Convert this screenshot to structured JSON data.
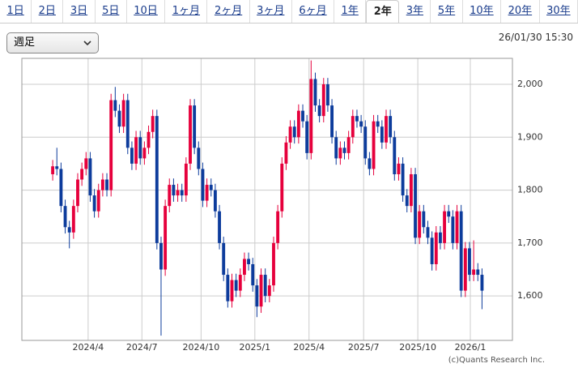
{
  "tabs": [
    "1日",
    "2日",
    "3日",
    "5日",
    "10日",
    "1ヶ月",
    "2ヶ月",
    "3ヶ月",
    "6ヶ月",
    "1年",
    "2年",
    "3年",
    "5年",
    "10年",
    "20年",
    "30年"
  ],
  "active_tab": "2年",
  "period_select": "週足",
  "timestamp": "26/01/30 15:30",
  "chart_data": {
    "type": "candlestick",
    "up_color": "#e6003c",
    "down_color": "#0d3c9c",
    "grid": true,
    "credit": "(c)Quants Research Inc.",
    "xlim": [
      -7.4,
      110.3
    ],
    "xticks": [
      {
        "value": 8.5,
        "label": "2024/4"
      },
      {
        "value": 21.4,
        "label": "2024/7"
      },
      {
        "value": 35.6,
        "label": "2024/10"
      },
      {
        "value": 48.5,
        "label": "2025/1"
      },
      {
        "value": 61.5,
        "label": "2025/4"
      },
      {
        "value": 74.6,
        "label": "2025/7"
      },
      {
        "value": 87.6,
        "label": "2025/10"
      },
      {
        "value": 100.2,
        "label": "2026/1"
      }
    ],
    "ylim": [
      1516,
      2049
    ],
    "yticks": [
      {
        "value": 1600,
        "label": "1,600"
      },
      {
        "value": 1700,
        "label": "1,700"
      },
      {
        "value": 1800,
        "label": "1,800"
      },
      {
        "value": 1900,
        "label": "1,900"
      },
      {
        "value": 2000,
        "label": "2,000"
      }
    ],
    "open": [
      1830,
      1845,
      1840,
      1770,
      1730,
      1720,
      1770,
      1820,
      1840,
      1860,
      1790,
      1760,
      1800,
      1820,
      1800,
      1970,
      1950,
      1920,
      1970,
      1880,
      1850,
      1900,
      1860,
      1880,
      1910,
      1940,
      1700,
      1650,
      1770,
      1810,
      1790,
      1800,
      1790,
      1850,
      1960,
      1880,
      1840,
      1780,
      1810,
      1800,
      1760,
      1700,
      1640,
      1590,
      1630,
      1610,
      1640,
      1670,
      1660,
      1620,
      1580,
      1640,
      1600,
      1620,
      1700,
      1760,
      1850,
      1890,
      1920,
      1900,
      1950,
      1930,
      1870,
      2010,
      1960,
      1940,
      2000,
      1960,
      1900,
      1860,
      1880,
      1870,
      1900,
      1940,
      1930,
      1920,
      1860,
      1840,
      1930,
      1920,
      1890,
      1940,
      1900,
      1830,
      1850,
      1790,
      1770,
      1830,
      1710,
      1760,
      1730,
      1710,
      1660,
      1720,
      1700,
      1760,
      1750,
      1700,
      1760,
      1610,
      1690,
      1640,
      1650,
      1640
    ],
    "high": [
      1857,
      1880,
      1852,
      1782,
      1742,
      1782,
      1832,
      1852,
      1872,
      1872,
      1802,
      1812,
      1832,
      1832,
      1982,
      1995,
      1962,
      1982,
      1982,
      1892,
      1912,
      1912,
      1892,
      1922,
      1952,
      1952,
      1712,
      1782,
      1822,
      1822,
      1812,
      1812,
      1862,
      1972,
      1972,
      1892,
      1852,
      1822,
      1822,
      1812,
      1772,
      1712,
      1652,
      1642,
      1642,
      1652,
      1682,
      1682,
      1672,
      1632,
      1652,
      1652,
      1632,
      1712,
      1772,
      1862,
      1902,
      1932,
      1932,
      1962,
      1962,
      1942,
      2045,
      2022,
      1972,
      2012,
      2012,
      1972,
      1912,
      1892,
      1892,
      1912,
      1952,
      1952,
      1942,
      1932,
      1872,
      1942,
      1942,
      1932,
      1952,
      1952,
      1912,
      1862,
      1862,
      1802,
      1842,
      1842,
      1772,
      1772,
      1742,
      1722,
      1732,
      1732,
      1772,
      1772,
      1762,
      1772,
      1772,
      1702,
      1702,
      1705,
      1662,
      1652
    ],
    "low": [
      1818,
      1828,
      1758,
      1718,
      1690,
      1708,
      1758,
      1808,
      1828,
      1778,
      1748,
      1748,
      1788,
      1788,
      1788,
      1938,
      1908,
      1908,
      1868,
      1838,
      1838,
      1848,
      1848,
      1868,
      1898,
      1688,
      1525,
      1638,
      1758,
      1778,
      1778,
      1778,
      1778,
      1838,
      1868,
      1828,
      1768,
      1768,
      1788,
      1748,
      1688,
      1628,
      1578,
      1578,
      1598,
      1598,
      1628,
      1648,
      1608,
      1560,
      1568,
      1588,
      1588,
      1608,
      1688,
      1748,
      1838,
      1878,
      1888,
      1888,
      1918,
      1858,
      1858,
      1948,
      1928,
      1928,
      1948,
      1888,
      1848,
      1848,
      1858,
      1858,
      1888,
      1918,
      1908,
      1848,
      1828,
      1828,
      1908,
      1878,
      1878,
      1888,
      1818,
      1818,
      1778,
      1758,
      1758,
      1698,
      1698,
      1718,
      1698,
      1648,
      1648,
      1688,
      1688,
      1738,
      1688,
      1688,
      1598,
      1598,
      1628,
      1628,
      1628,
      1575
    ],
    "close": [
      1845,
      1840,
      1770,
      1730,
      1720,
      1770,
      1820,
      1840,
      1860,
      1790,
      1760,
      1800,
      1820,
      1800,
      1970,
      1950,
      1920,
      1970,
      1880,
      1850,
      1900,
      1860,
      1880,
      1910,
      1940,
      1700,
      1650,
      1770,
      1810,
      1790,
      1800,
      1790,
      1850,
      1960,
      1880,
      1840,
      1780,
      1810,
      1800,
      1760,
      1700,
      1640,
      1590,
      1630,
      1610,
      1640,
      1670,
      1660,
      1620,
      1580,
      1640,
      1600,
      1620,
      1700,
      1760,
      1850,
      1890,
      1920,
      1900,
      1950,
      1930,
      1870,
      2010,
      1960,
      1940,
      2000,
      1960,
      1900,
      1860,
      1880,
      1870,
      1900,
      1940,
      1930,
      1920,
      1860,
      1840,
      1930,
      1920,
      1890,
      1940,
      1900,
      1830,
      1850,
      1790,
      1770,
      1830,
      1710,
      1760,
      1730,
      1710,
      1660,
      1720,
      1700,
      1760,
      1750,
      1700,
      1760,
      1610,
      1690,
      1640,
      1650,
      1640,
      1610
    ]
  }
}
